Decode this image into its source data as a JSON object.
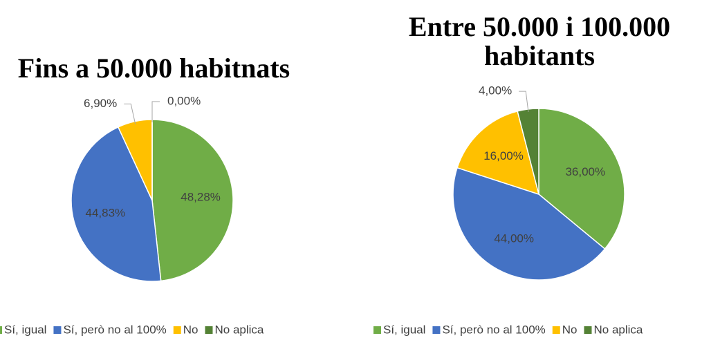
{
  "chart_data": [
    {
      "type": "pie",
      "title": "Fins a 50.000 habitnats",
      "categories": [
        "Sí, igual",
        "Sí, però no al 100%",
        "No",
        "No aplica"
      ],
      "values": [
        48.28,
        44.83,
        6.9,
        0.0
      ],
      "value_labels": [
        "48,28%",
        "44,83%",
        "6,90%",
        "0,00%"
      ],
      "colors": [
        "#70ad47",
        "#4472c4",
        "#ffc000",
        "#548235"
      ]
    },
    {
      "type": "pie",
      "title": "Entre 50.000 i 100.000 habitants",
      "categories": [
        "Sí, igual",
        "Sí, però no al 100%",
        "No",
        "No aplica"
      ],
      "values": [
        36,
        44,
        16,
        4
      ],
      "value_labels": [
        "36,00%",
        "44,00%",
        "16,00%",
        "4,00%"
      ],
      "colors": [
        "#70ad47",
        "#4472c4",
        "#ffc000",
        "#548235"
      ]
    }
  ]
}
